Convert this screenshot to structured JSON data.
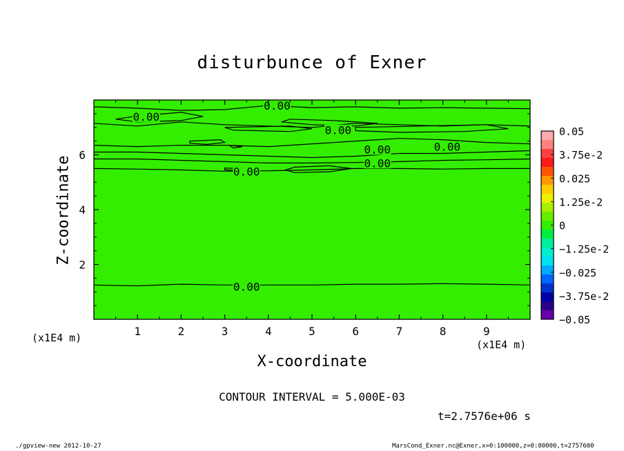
{
  "chart_data": {
    "type": "contour",
    "title": "disturbunce of Exner",
    "xlabel": "X-coordinate",
    "ylabel": "Z-coordinate",
    "x_unit": "(x1E4 m)",
    "xlim": [
      0,
      10
    ],
    "ylim": [
      0,
      8
    ],
    "x_ticks": [
      "1",
      "2",
      "3",
      "4",
      "5",
      "6",
      "7",
      "8",
      "9"
    ],
    "y_ticks": [
      "2",
      "4",
      "6"
    ],
    "contour_interval_text": "CONTOUR INTERVAL = 5.000E-03",
    "time_text": "t=2.7576e+06 s",
    "field_fill_color": "#33ee00",
    "contour_labels": [
      {
        "text": "0.00",
        "x": 1.2,
        "y": 7.4
      },
      {
        "text": "0.00",
        "x": 4.2,
        "y": 7.8
      },
      {
        "text": "0.00",
        "x": 5.6,
        "y": 6.9
      },
      {
        "text": "0.00",
        "x": 8.1,
        "y": 6.3
      },
      {
        "text": "0.00",
        "x": 6.5,
        "y": 6.2
      },
      {
        "text": "0.00",
        "x": 6.5,
        "y": 5.7
      },
      {
        "text": "0.00",
        "x": 3.5,
        "y": 5.4
      },
      {
        "text": "0.00",
        "x": 3.5,
        "y": 1.2
      }
    ],
    "contour_lines": [
      [
        [
          0,
          7.75
        ],
        [
          1,
          7.7
        ],
        [
          2,
          7.62
        ],
        [
          3,
          7.65
        ],
        [
          4,
          7.8
        ],
        [
          5,
          7.72
        ],
        [
          6,
          7.75
        ],
        [
          7,
          7.7
        ],
        [
          8,
          7.72
        ],
        [
          9,
          7.7
        ],
        [
          10,
          7.68
        ]
      ],
      [
        [
          0,
          7.15
        ],
        [
          1,
          7.05
        ],
        [
          2,
          7.2
        ],
        [
          3,
          7.1
        ],
        [
          4,
          7.05
        ],
        [
          5,
          7.0
        ],
        [
          6,
          7.15
        ],
        [
          7,
          7.1
        ],
        [
          8,
          7.05
        ],
        [
          9,
          7.1
        ],
        [
          10,
          7.05
        ]
      ],
      [
        [
          0,
          6.35
        ],
        [
          1,
          6.3
        ],
        [
          2,
          6.35
        ],
        [
          3,
          6.35
        ],
        [
          4,
          6.3
        ],
        [
          5,
          6.4
        ],
        [
          6,
          6.5
        ],
        [
          7,
          6.6
        ],
        [
          8,
          6.55
        ],
        [
          9,
          6.45
        ],
        [
          10,
          6.4
        ]
      ],
      [
        [
          0,
          6.1
        ],
        [
          1,
          6.1
        ],
        [
          2,
          6.05
        ],
        [
          3,
          6.0
        ],
        [
          4,
          5.95
        ],
        [
          5,
          5.9
        ],
        [
          6,
          5.95
        ],
        [
          7,
          6.05
        ],
        [
          8,
          6.05
        ],
        [
          9,
          6.1
        ],
        [
          10,
          6.15
        ]
      ],
      [
        [
          0,
          5.85
        ],
        [
          1,
          5.85
        ],
        [
          2,
          5.8
        ],
        [
          3,
          5.75
        ],
        [
          4,
          5.7
        ],
        [
          5,
          5.7
        ],
        [
          6,
          5.72
        ],
        [
          7,
          5.75
        ],
        [
          8,
          5.8
        ],
        [
          9,
          5.82
        ],
        [
          10,
          5.85
        ]
      ],
      [
        [
          0,
          5.5
        ],
        [
          1,
          5.48
        ],
        [
          2,
          5.45
        ],
        [
          3,
          5.4
        ],
        [
          4,
          5.42
        ],
        [
          5,
          5.45
        ],
        [
          6,
          5.5
        ],
        [
          7,
          5.5
        ],
        [
          8,
          5.48
        ],
        [
          9,
          5.5
        ],
        [
          10,
          5.5
        ]
      ],
      [
        [
          0,
          1.25
        ],
        [
          1,
          1.22
        ],
        [
          2,
          1.28
        ],
        [
          3,
          1.25
        ],
        [
          4,
          1.25
        ],
        [
          5,
          1.25
        ],
        [
          6,
          1.28
        ],
        [
          7,
          1.28
        ],
        [
          8,
          1.3
        ],
        [
          9,
          1.28
        ],
        [
          10,
          1.25
        ]
      ]
    ],
    "contour_loops": [
      [
        [
          2.0,
          7.55
        ],
        [
          1.0,
          7.42
        ],
        [
          0.5,
          7.3
        ],
        [
          1.0,
          7.2
        ],
        [
          2.0,
          7.25
        ],
        [
          2.5,
          7.4
        ]
      ],
      [
        [
          3.0,
          7.0
        ],
        [
          4.5,
          7.05
        ],
        [
          5.0,
          6.95
        ],
        [
          4.5,
          6.85
        ],
        [
          3.2,
          6.9
        ]
      ],
      [
        [
          4.5,
          7.3
        ],
        [
          5.5,
          7.25
        ],
        [
          6.5,
          7.15
        ],
        [
          6.0,
          7.05
        ],
        [
          5.0,
          7.1
        ],
        [
          4.3,
          7.2
        ]
      ],
      [
        [
          6.0,
          7.0
        ],
        [
          7.5,
          7.05
        ],
        [
          9.0,
          7.1
        ],
        [
          9.5,
          6.95
        ],
        [
          8.5,
          6.85
        ],
        [
          7.0,
          6.82
        ],
        [
          6.0,
          6.88
        ]
      ],
      [
        [
          2.2,
          6.5
        ],
        [
          2.9,
          6.55
        ],
        [
          3.0,
          6.45
        ],
        [
          2.6,
          6.38
        ],
        [
          2.2,
          6.42
        ]
      ],
      [
        [
          3.1,
          6.35
        ],
        [
          3.4,
          6.3
        ],
        [
          3.2,
          6.25
        ]
      ],
      [
        [
          4.6,
          5.55
        ],
        [
          5.4,
          5.6
        ],
        [
          5.9,
          5.5
        ],
        [
          5.4,
          5.38
        ],
        [
          4.6,
          5.35
        ],
        [
          4.4,
          5.45
        ]
      ],
      [
        [
          3.0,
          5.52
        ],
        [
          3.6,
          5.48
        ],
        [
          3.5,
          5.42
        ],
        [
          3.0,
          5.45
        ]
      ]
    ],
    "colorbar": {
      "labels": [
        "0.05",
        "3.75e-2",
        "0.025",
        "1.25e-2",
        "0",
        "−1.25e-2",
        "−0.025",
        "−3.75e-2",
        "−0.05"
      ],
      "colors": [
        "#ffaaaa",
        "#ff8080",
        "#ff4040",
        "#ff1a1a",
        "#ff5500",
        "#ff9900",
        "#ffcc00",
        "#eeee00",
        "#aaee00",
        "#66ee00",
        "#33ee00",
        "#00ee44",
        "#00ee99",
        "#00eecc",
        "#00e0ee",
        "#00aaff",
        "#0066ff",
        "#0033cc",
        "#0000aa",
        "#2a0088",
        "#6600aa"
      ]
    }
  },
  "labels": {
    "title": "disturbunce of Exner",
    "xlabel": "X-coordinate",
    "ylabel": "Z-coordinate",
    "x_unit_left": "(x1E4 m)",
    "x_unit_right": "(x1E4 m)",
    "interval": "CONTOUR INTERVAL = 5.000E-03",
    "time": "t=2.7576e+06 s",
    "footer_left": "./gpview-new   2012-10-27",
    "footer_right": "MarsCond_Exner.nc@Exner,x=0:100000,z=0:80000,t=2757600"
  }
}
